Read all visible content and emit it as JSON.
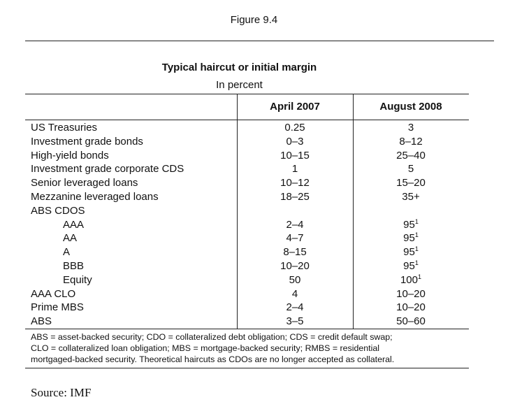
{
  "figure_label": "Figure 9.4",
  "title": "Typical haircut or initial margin",
  "subtitle": "In percent",
  "columns": [
    "April 2007",
    "August 2008"
  ],
  "rows": [
    {
      "label": "US Treasuries",
      "apr2007": "0.25",
      "aug2008": "3",
      "indent": false,
      "note": ""
    },
    {
      "label": "Investment grade bonds",
      "apr2007": "0–3",
      "aug2008": "8–12",
      "indent": false,
      "note": ""
    },
    {
      "label": "High-yield bonds",
      "apr2007": "10–15",
      "aug2008": "25–40",
      "indent": false,
      "note": ""
    },
    {
      "label": "Investment grade corporate CDS",
      "apr2007": "1",
      "aug2008": "5",
      "indent": false,
      "note": ""
    },
    {
      "label": "Senior leveraged loans",
      "apr2007": "10–12",
      "aug2008": "15–20",
      "indent": false,
      "note": ""
    },
    {
      "label": "Mezzanine leveraged loans",
      "apr2007": "18–25",
      "aug2008": "35+",
      "indent": false,
      "note": ""
    },
    {
      "label": "ABS CDOS",
      "apr2007": "",
      "aug2008": "",
      "indent": false,
      "note": ""
    },
    {
      "label": "AAA",
      "apr2007": "2–4",
      "aug2008": "95",
      "indent": true,
      "note": "1"
    },
    {
      "label": "AA",
      "apr2007": "4–7",
      "aug2008": "95",
      "indent": true,
      "note": "1"
    },
    {
      "label": "A",
      "apr2007": "8–15",
      "aug2008": "95",
      "indent": true,
      "note": "1"
    },
    {
      "label": "BBB",
      "apr2007": "10–20",
      "aug2008": "95",
      "indent": true,
      "note": "1"
    },
    {
      "label": "Equity",
      "apr2007": "50",
      "aug2008": "100",
      "indent": true,
      "note": "1"
    },
    {
      "label": "AAA CLO",
      "apr2007": "4",
      "aug2008": "10–20",
      "indent": false,
      "note": ""
    },
    {
      "label": "Prime MBS",
      "apr2007": "2–4",
      "aug2008": "10–20",
      "indent": false,
      "note": ""
    },
    {
      "label": "ABS",
      "apr2007": "3–5",
      "aug2008": "50–60",
      "indent": false,
      "note": ""
    }
  ],
  "notes": [
    "ABS = asset-backed security; CDO = collateralized debt obligation; CDS = credit default swap;",
    "CLO = collateralized loan obligation; MBS = mortgage-backed security; RMBS = residential",
    "mortgaged-backed security. Theoretical haircuts as CDOs are no longer accepted as collateral."
  ],
  "source": "Source: IMF"
}
